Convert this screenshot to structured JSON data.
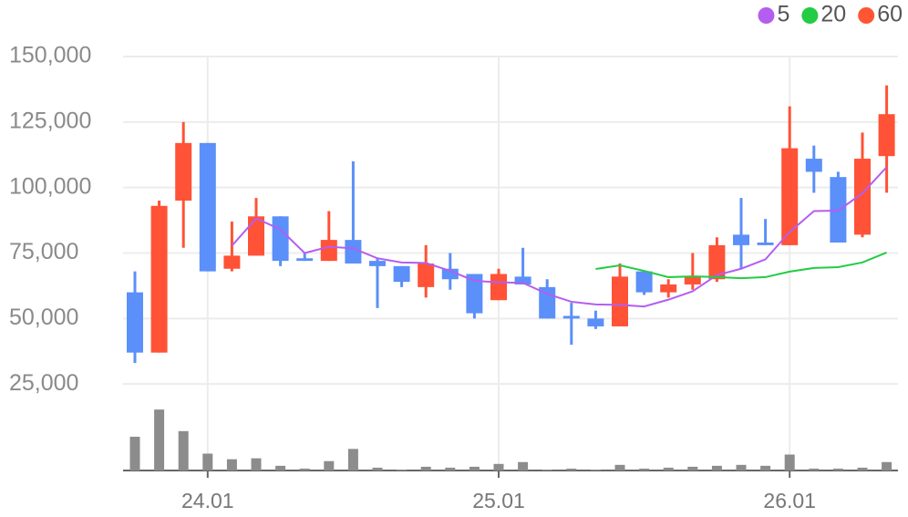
{
  "chart_data": {
    "type": "candlestick",
    "categories": [
      null,
      null,
      null,
      "24.01",
      null,
      null,
      null,
      null,
      null,
      null,
      null,
      null,
      null,
      null,
      null,
      "25.01",
      null,
      null,
      null,
      null,
      null,
      null,
      null,
      null,
      null,
      null,
      null,
      "26.01",
      null,
      null,
      null,
      null
    ],
    "open": [
      60000,
      37000,
      95000,
      117000,
      69000,
      74000,
      89000,
      73000,
      72000,
      80000,
      72000,
      70000,
      62000,
      69000,
      67000,
      57000,
      66000,
      62000,
      51000,
      50000,
      47000,
      68000,
      60000,
      63000,
      65000,
      82000,
      79000,
      78000,
      111000,
      104000,
      82000,
      112000
    ],
    "high": [
      68000,
      95000,
      125000,
      117000,
      87000,
      96000,
      89000,
      75000,
      91000,
      110000,
      73000,
      70000,
      78000,
      75000,
      67000,
      69000,
      77000,
      65000,
      56000,
      53000,
      71000,
      68000,
      65000,
      75000,
      81000,
      96000,
      88000,
      131000,
      116000,
      106000,
      121000,
      139000
    ],
    "low": [
      33000,
      37000,
      77000,
      68000,
      68000,
      74000,
      70000,
      72000,
      72000,
      71000,
      54000,
      62000,
      58000,
      61000,
      50000,
      57000,
      63000,
      50000,
      40000,
      46000,
      47000,
      59000,
      58000,
      61000,
      64000,
      69000,
      78000,
      78000,
      98000,
      79000,
      81000,
      98000
    ],
    "close": [
      37000,
      93000,
      117000,
      68000,
      74000,
      89000,
      72000,
      72000,
      80000,
      71000,
      70000,
      64000,
      71000,
      65000,
      52000,
      67000,
      63000,
      50000,
      50000,
      47000,
      66000,
      60000,
      63000,
      66000,
      78000,
      78000,
      78000,
      115000,
      106000,
      79000,
      111000,
      128000
    ],
    "up_color": "#ff5236",
    "down_color": "#5b8ff9",
    "series": [
      {
        "name": "5",
        "color": "#b45ef0",
        "values": [
          null,
          null,
          null,
          null,
          77800,
          88200,
          84000,
          75000,
          77400,
          76800,
          73000,
          71400,
          71200,
          68200,
          64400,
          63800,
          63600,
          59400,
          56400,
          55400,
          55200,
          54600,
          57200,
          60400,
          66600,
          69000,
          72600,
          83000,
          91000,
          91200,
          97800,
          107800
        ]
      },
      {
        "name": "20",
        "color": "#22cc44",
        "values": [
          null,
          null,
          null,
          null,
          null,
          null,
          null,
          null,
          null,
          null,
          null,
          null,
          null,
          null,
          null,
          null,
          null,
          null,
          null,
          68900,
          70300,
          68200,
          65800,
          66100,
          65800,
          65400,
          65800,
          67900,
          69300,
          69600,
          71400,
          75200
        ]
      },
      {
        "name": "60",
        "color": "#ff5533",
        "values": [
          null,
          null,
          null,
          null,
          null,
          null,
          null,
          null,
          null,
          null,
          null,
          null,
          null,
          null,
          null,
          null,
          null,
          null,
          null,
          null,
          null,
          null,
          null,
          null,
          null,
          null,
          null,
          null,
          null,
          null,
          null,
          null
        ]
      }
    ],
    "volume": {
      "color": "#8c8c8c",
      "ylim": [
        0,
        70
      ],
      "values": [
        36,
        65,
        42,
        18,
        12,
        13,
        5,
        2,
        10,
        23,
        3,
        1,
        4,
        3,
        4,
        7,
        9,
        1,
        2,
        1,
        6,
        2,
        3,
        4,
        5,
        6,
        5,
        17,
        2,
        2,
        3,
        9
      ]
    },
    "ylim": [
      0,
      150000
    ],
    "yticks": [
      {
        "value": 25000,
        "label": "25,000"
      },
      {
        "value": 50000,
        "label": "50,000"
      },
      {
        "value": 75000,
        "label": "75,000"
      },
      {
        "value": 100000,
        "label": "100,000"
      },
      {
        "value": 125000,
        "label": "125,000"
      },
      {
        "value": 150000,
        "label": "150,000"
      }
    ],
    "grid": true,
    "legend": "top-right"
  }
}
